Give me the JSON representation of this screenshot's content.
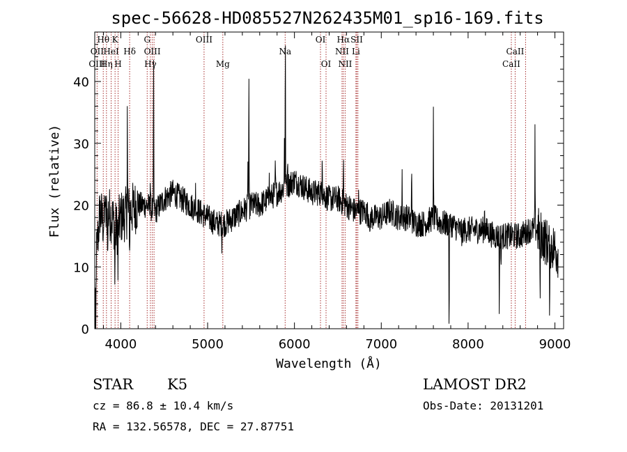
{
  "chart_data": {
    "type": "line",
    "title": "spec-56628-HD085527N262435M01_sp16-169.fits",
    "xlabel": "Wavelength (Å)",
    "ylabel": "Flux (relative)",
    "xlim": [
      3700,
      9100
    ],
    "ylim": [
      0,
      48
    ],
    "xticks": [
      4000,
      5000,
      6000,
      7000,
      8000,
      9000
    ],
    "yticks": [
      0,
      10,
      20,
      30,
      40
    ],
    "grid": false,
    "line_color": "#000000",
    "marker_color": "#a52a2a",
    "line_markers": [
      {
        "label": "Hθ",
        "x": 3798,
        "row": 0
      },
      {
        "label": "OII",
        "x": 3727,
        "row": 1
      },
      {
        "label": "HeI",
        "x": 3889,
        "row": 1
      },
      {
        "label": "OIII",
        "x": 3727,
        "row": 2
      },
      {
        "label": "Hη",
        "x": 3835,
        "row": 2
      },
      {
        "label": "K",
        "x": 3934,
        "row": 0
      },
      {
        "label": "H",
        "x": 3969,
        "row": 2
      },
      {
        "label": "Hδ",
        "x": 4102,
        "row": 1
      },
      {
        "label": "G",
        "x": 4304,
        "row": 0
      },
      {
        "label": "OIII",
        "x": 4363,
        "row": 1
      },
      {
        "label": "Hγ",
        "x": 4341,
        "row": 2
      },
      {
        "label": "OIII",
        "x": 4959,
        "row": 0
      },
      {
        "label": "Mg",
        "x": 5175,
        "row": 2
      },
      {
        "label": "Na",
        "x": 5893,
        "row": 1
      },
      {
        "label": "OI",
        "x": 6300,
        "row": 0
      },
      {
        "label": "OI",
        "x": 6364,
        "row": 2
      },
      {
        "label": "Hα",
        "x": 6563,
        "row": 0
      },
      {
        "label": "SII",
        "x": 6717,
        "row": 0
      },
      {
        "label": "NII",
        "x": 6548,
        "row": 1
      },
      {
        "label": "Li",
        "x": 6708,
        "row": 1
      },
      {
        "label": "NII",
        "x": 6584,
        "row": 2
      },
      {
        "label": "CaII",
        "x": 8542,
        "row": 1
      },
      {
        "label": "CaII",
        "x": 8498,
        "row": 2
      }
    ],
    "extra_marker_lines": [
      4383,
      6731,
      8662
    ],
    "spectrum_anchors": [
      [
        3700,
        0
      ],
      [
        3720,
        12
      ],
      [
        3760,
        19
      ],
      [
        3800,
        17
      ],
      [
        3850,
        19
      ],
      [
        3900,
        18
      ],
      [
        3950,
        16
      ],
      [
        4000,
        18
      ],
      [
        4100,
        19
      ],
      [
        4200,
        20
      ],
      [
        4300,
        20
      ],
      [
        4400,
        19
      ],
      [
        4500,
        21
      ],
      [
        4600,
        22
      ],
      [
        4700,
        21
      ],
      [
        4800,
        20
      ],
      [
        4900,
        19
      ],
      [
        5000,
        18
      ],
      [
        5100,
        17
      ],
      [
        5200,
        17
      ],
      [
        5300,
        18
      ],
      [
        5400,
        19
      ],
      [
        5500,
        20
      ],
      [
        5600,
        20
      ],
      [
        5700,
        21
      ],
      [
        5800,
        22
      ],
      [
        5900,
        23
      ],
      [
        6000,
        24
      ],
      [
        6100,
        23
      ],
      [
        6200,
        22
      ],
      [
        6300,
        22
      ],
      [
        6400,
        21
      ],
      [
        6500,
        21
      ],
      [
        6600,
        20
      ],
      [
        6700,
        19
      ],
      [
        6800,
        19
      ],
      [
        6900,
        18
      ],
      [
        7000,
        18
      ],
      [
        7100,
        19
      ],
      [
        7200,
        18
      ],
      [
        7300,
        18
      ],
      [
        7400,
        17
      ],
      [
        7500,
        17
      ],
      [
        7600,
        18
      ],
      [
        7700,
        17
      ],
      [
        7800,
        17
      ],
      [
        7900,
        16
      ],
      [
        8000,
        16
      ],
      [
        8100,
        16
      ],
      [
        8200,
        16
      ],
      [
        8300,
        15
      ],
      [
        8400,
        15
      ],
      [
        8500,
        15
      ],
      [
        8600,
        15
      ],
      [
        8700,
        16
      ],
      [
        8800,
        16
      ],
      [
        8900,
        14
      ],
      [
        9000,
        13
      ],
      [
        9040,
        12
      ]
    ],
    "spectrum_features": [
      [
        3712,
        -10
      ],
      [
        3818,
        5
      ],
      [
        3850,
        -8
      ],
      [
        3932,
        -11
      ],
      [
        3968,
        -9
      ],
      [
        4102,
        -7
      ],
      [
        4075,
        17
      ],
      [
        4340,
        5
      ],
      [
        4378,
        23
      ],
      [
        4861,
        3
      ],
      [
        5165,
        -3
      ],
      [
        5465,
        10
      ],
      [
        5475,
        21
      ],
      [
        5710,
        6
      ],
      [
        5780,
        5
      ],
      [
        5885,
        10
      ],
      [
        5895,
        24
      ],
      [
        5920,
        5
      ],
      [
        6320,
        8
      ],
      [
        6564,
        7
      ],
      [
        6740,
        5
      ],
      [
        6870,
        -5
      ],
      [
        7240,
        7
      ],
      [
        7350,
        10
      ],
      [
        7600,
        16
      ],
      [
        7781,
        -18
      ],
      [
        7930,
        -4
      ],
      [
        8190,
        4
      ],
      [
        8360,
        -13
      ],
      [
        8380,
        -5
      ],
      [
        8770,
        15
      ],
      [
        8830,
        -14
      ],
      [
        8940,
        -13
      ]
    ]
  },
  "info": {
    "object_type": "STAR",
    "subclass": "K5",
    "survey": "LAMOST DR2",
    "redshift": "cz = 86.8 ± 10.4 km/s",
    "obs_date": "Obs-Date: 20131201",
    "coordinates": "RA = 132.56578, DEC =  27.87751"
  }
}
